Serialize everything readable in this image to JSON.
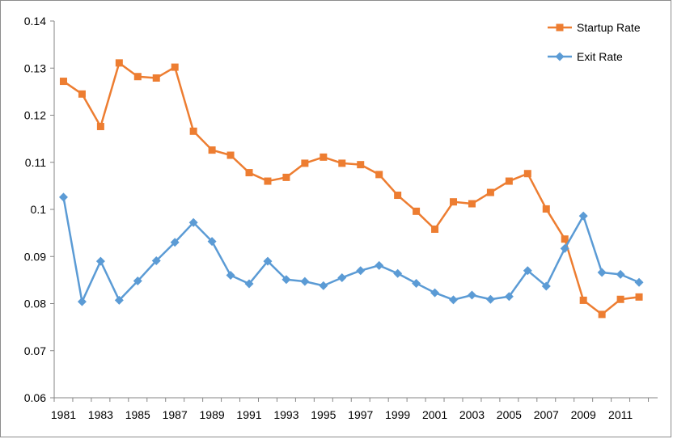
{
  "chart_data": {
    "type": "line",
    "title": "",
    "xlabel": "",
    "ylabel": "",
    "x": [
      1981,
      1982,
      1983,
      1984,
      1985,
      1986,
      1987,
      1988,
      1989,
      1990,
      1991,
      1992,
      1993,
      1994,
      1995,
      1996,
      1997,
      1998,
      1999,
      2000,
      2001,
      2002,
      2003,
      2004,
      2005,
      2006,
      2007,
      2008,
      2009,
      2010,
      2011,
      2012
    ],
    "x_tick_labels": [
      "1981",
      "1983",
      "1985",
      "1987",
      "1989",
      "1991",
      "1993",
      "1995",
      "1997",
      "1999",
      "2001",
      "2003",
      "2005",
      "2007",
      "2009",
      "2011"
    ],
    "ylim": [
      0.06,
      0.14
    ],
    "y_tick_labels": [
      "0.06",
      "0.07",
      "0.08",
      "0.09",
      "0.1",
      "0.11",
      "0.12",
      "0.13",
      "0.14"
    ],
    "grid": false,
    "legend_position": "top-right",
    "series": [
      {
        "name": "Startup Rate",
        "color": "#ED7D31",
        "marker": "square",
        "values": [
          0.1272,
          0.1245,
          0.1176,
          0.1311,
          0.1282,
          0.1279,
          0.1302,
          0.1166,
          0.1126,
          0.1115,
          0.1078,
          0.106,
          0.1068,
          0.1098,
          0.1111,
          0.1098,
          0.1095,
          0.1074,
          0.103,
          0.0996,
          0.0958,
          0.1016,
          0.1012,
          0.1036,
          0.106,
          0.1076,
          0.1001,
          0.0937,
          0.0807,
          0.0777,
          0.0809,
          0.0814
        ]
      },
      {
        "name": "Exit Rate",
        "color": "#5B9BD5",
        "marker": "diamond",
        "values": [
          0.1026,
          0.0804,
          0.089,
          0.0807,
          0.0848,
          0.0891,
          0.093,
          0.0972,
          0.0932,
          0.086,
          0.0842,
          0.089,
          0.0851,
          0.0847,
          0.0838,
          0.0855,
          0.087,
          0.0881,
          0.0864,
          0.0843,
          0.0823,
          0.0808,
          0.0818,
          0.0809,
          0.0815,
          0.087,
          0.0837,
          0.0917,
          0.0986,
          0.0866,
          0.0862,
          0.0845
        ]
      }
    ]
  }
}
